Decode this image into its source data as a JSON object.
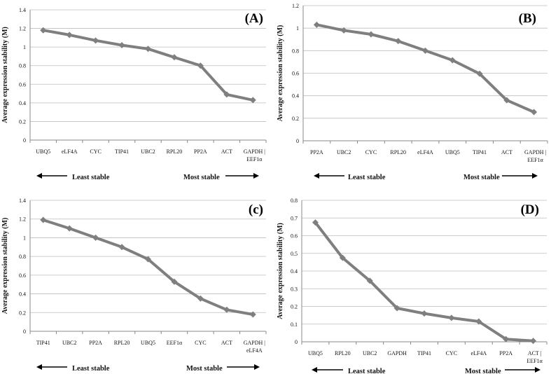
{
  "colors": {
    "line": "#7f7f7f",
    "grid": "#bdbdbd",
    "axis": "#888888",
    "text": "#111111"
  },
  "chart_data": [
    {
      "panel": "(A)",
      "type": "line",
      "ylabel": "Average expression stability (M)",
      "ylim": [
        0,
        1.4
      ],
      "yticks": [
        "0",
        "0.2",
        "0.4",
        "0.6",
        "0.8",
        "1",
        "1.2",
        "1.4"
      ],
      "categories": [
        "UBQ5",
        "eLF4A",
        "CYC",
        "TIP41",
        "UBC2",
        "RPL20",
        "PP2A",
        "ACT",
        "GAPDH | EEF1α"
      ],
      "values": [
        1.18,
        1.13,
        1.07,
        1.02,
        0.98,
        0.89,
        0.8,
        0.49,
        0.43
      ],
      "least_label": "Least stable",
      "most_label": "Most stable"
    },
    {
      "panel": "(B)",
      "type": "line",
      "ylabel": "Average expression stability (M)",
      "ylim": [
        0,
        1.2
      ],
      "yticks": [
        "0",
        "0.2",
        "0.4",
        "0.6",
        "0.8",
        "1",
        "1.2"
      ],
      "categories": [
        "PP2A",
        "UBC2",
        "CYC",
        "RPL20",
        "eLF4A",
        "UBQ5",
        "TIP41",
        "ACT",
        "GAPDH | EEF1α"
      ],
      "values": [
        1.03,
        0.98,
        0.945,
        0.885,
        0.8,
        0.715,
        0.595,
        0.36,
        0.255
      ],
      "least_label": "Least stable",
      "most_label": "Most stable"
    },
    {
      "panel": "(c)",
      "type": "line",
      "ylabel": "Average expression stability (M)",
      "ylim": [
        0,
        1.4
      ],
      "yticks": [
        "0",
        "0.2",
        "0.4",
        "0.6",
        "0.8",
        "1",
        "1.2",
        "1.4"
      ],
      "categories": [
        "TIP41",
        "UBC2",
        "PP2A",
        "RPL20",
        "UBQ5",
        "EEF1α",
        "CYC",
        "ACT",
        "GAPDH | eLF4A"
      ],
      "values": [
        1.19,
        1.1,
        1.0,
        0.9,
        0.77,
        0.53,
        0.35,
        0.23,
        0.18
      ],
      "least_label": "Least stable",
      "most_label": "Most stable"
    },
    {
      "panel": "(D)",
      "type": "line",
      "ylabel": "Average expression stability (M)",
      "ylim": [
        0,
        0.8
      ],
      "yticks": [
        "0",
        "0.1",
        "0.2",
        "0.3",
        "0.4",
        "0.5",
        "0.6",
        "0.7",
        "0.8"
      ],
      "categories": [
        "UBQ5",
        "RPL20",
        "UBC2",
        "GAPDH",
        "TIP41",
        "CYC",
        "eLF4A",
        "PP2A",
        "ACT | EEF1α"
      ],
      "values": [
        0.675,
        0.475,
        0.345,
        0.19,
        0.16,
        0.135,
        0.115,
        0.015,
        0.005
      ],
      "least_label": "Least stable",
      "most_label": "Most stable"
    }
  ]
}
